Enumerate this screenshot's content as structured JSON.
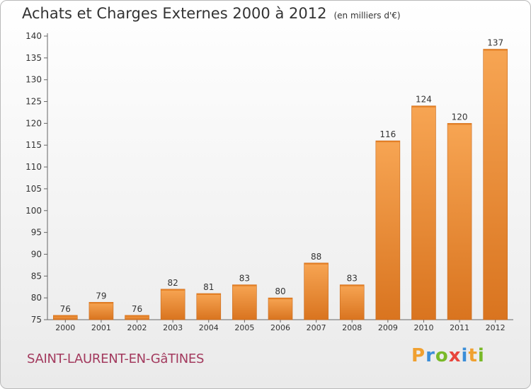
{
  "header": {
    "title": "Achats et Charges Externes 2000 à 2012",
    "subtitle": "(en milliers d'€)"
  },
  "footer": {
    "town": "SAINT-LAURENT-EN-GâTINES",
    "logo_letters": [
      "P",
      "r",
      "o",
      "x",
      "i",
      "t",
      "i"
    ]
  },
  "colors": {
    "bar_top": "#f7a553",
    "bar_bottom": "#d9741f",
    "axis": "#666666",
    "grid": "#dddddd",
    "town": "#a33a5e"
  },
  "chart_data": {
    "type": "bar",
    "title": "Achats et Charges Externes 2000 à 2012",
    "subtitle": "(en milliers d'€)",
    "xlabel": "",
    "ylabel": "",
    "categories": [
      "2000",
      "2001",
      "2002",
      "2003",
      "2004",
      "2005",
      "2006",
      "2007",
      "2008",
      "2009",
      "2010",
      "2011",
      "2012"
    ],
    "values": [
      76,
      79,
      76,
      82,
      81,
      83,
      80,
      88,
      83,
      116,
      124,
      120,
      137
    ],
    "ylim": [
      75,
      140
    ],
    "yticks": [
      75,
      80,
      85,
      90,
      95,
      100,
      105,
      110,
      115,
      120,
      125,
      130,
      135,
      140
    ],
    "grid": false,
    "legend": "none",
    "data_labels": true
  }
}
